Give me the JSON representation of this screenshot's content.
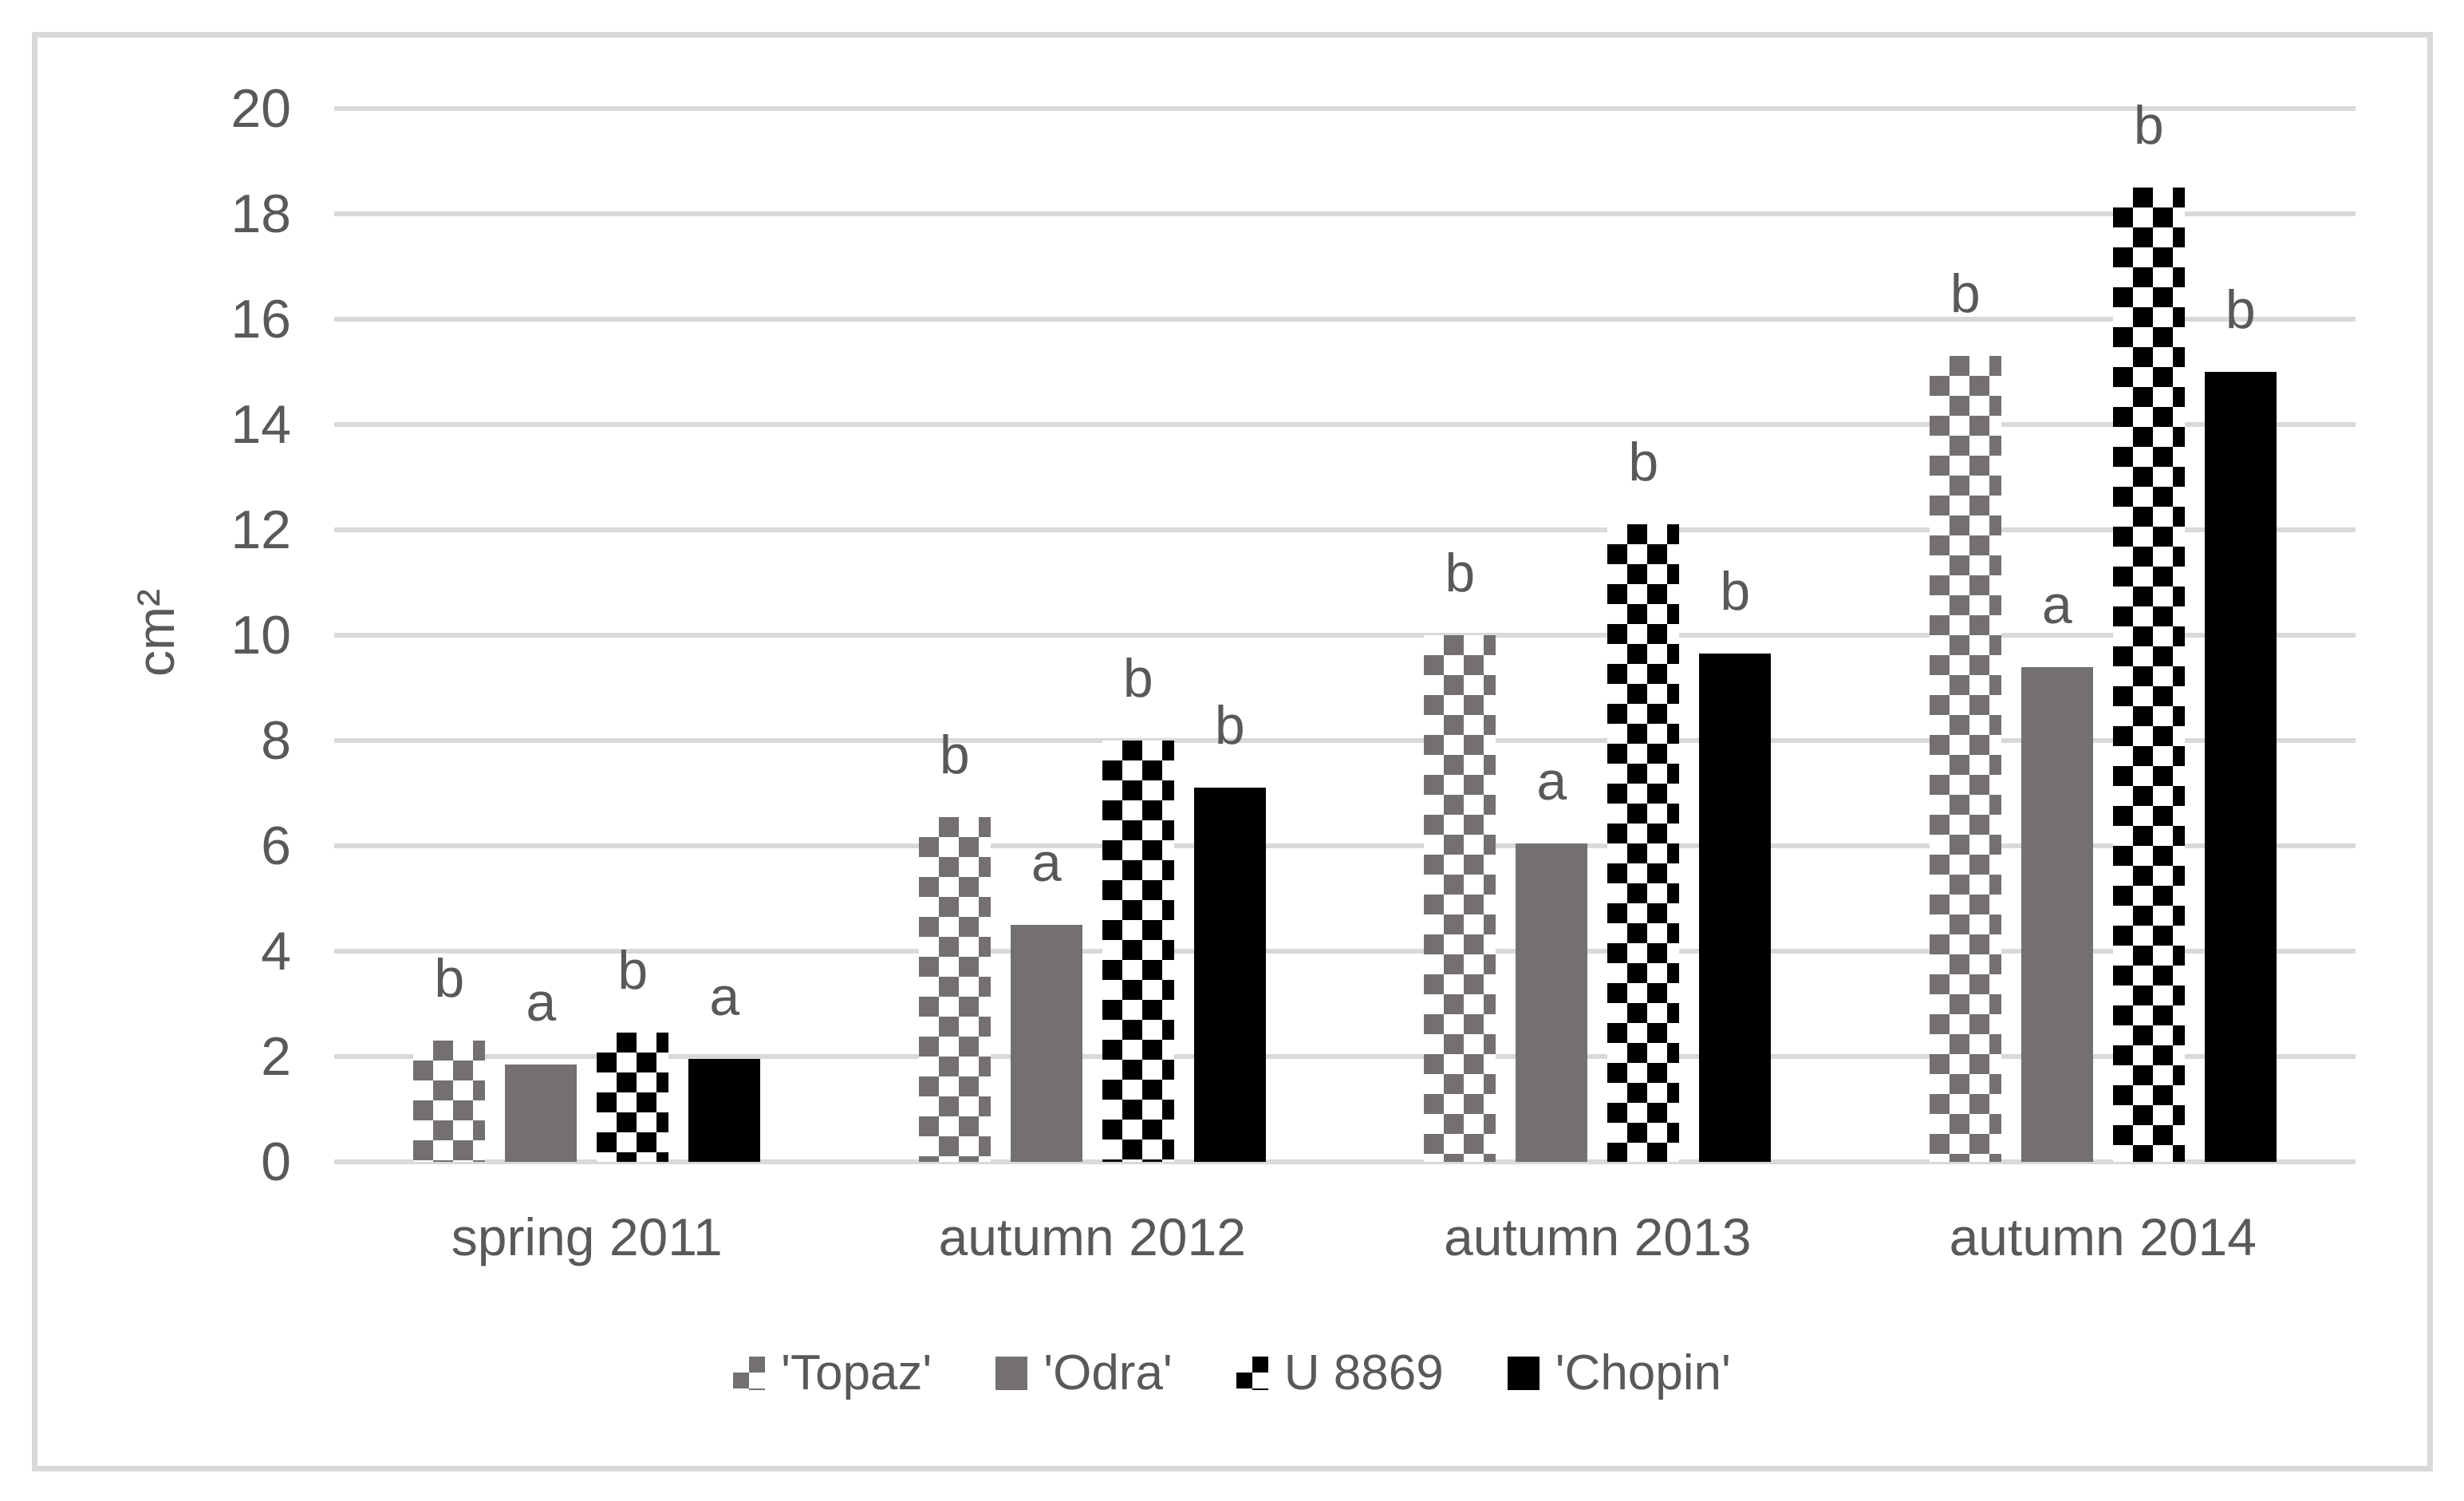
{
  "chart_data": {
    "type": "bar",
    "title": "",
    "xlabel": "",
    "ylabel": "cm²",
    "ylim": [
      0,
      20
    ],
    "yticks": [
      0,
      2,
      4,
      6,
      8,
      10,
      12,
      14,
      16,
      18,
      20
    ],
    "grid": true,
    "legend_position": "bottom",
    "categories": [
      "spring 2011",
      "autumn 2012",
      "autumn 2013",
      "autumn 2014"
    ],
    "series": [
      {
        "name": "'Topaz'",
        "pattern": "checker-gray",
        "values": [
          2.3,
          6.55,
          10.0,
          15.3
        ],
        "letters": [
          "b",
          "b",
          "b",
          "b"
        ]
      },
      {
        "name": "'Odra'",
        "pattern": "solid-gray",
        "values": [
          1.85,
          4.5,
          6.05,
          9.4
        ],
        "letters": [
          "a",
          "a",
          "a",
          "a"
        ]
      },
      {
        "name": "U 8869",
        "pattern": "checker-black",
        "values": [
          2.45,
          8.0,
          12.1,
          18.5
        ],
        "letters": [
          "b",
          "b",
          "b",
          "b"
        ]
      },
      {
        "name": "'Chopin'",
        "pattern": "solid-black",
        "values": [
          1.95,
          7.1,
          9.65,
          15.0
        ],
        "letters": [
          "a",
          "b",
          "b",
          "b"
        ]
      }
    ]
  },
  "colors": {
    "bar_gray": "#757070",
    "bar_black": "#000000",
    "gridline": "#d9d9d9",
    "frame_border": "#d9d9d9",
    "text": "#595959",
    "background": "#ffffff"
  }
}
